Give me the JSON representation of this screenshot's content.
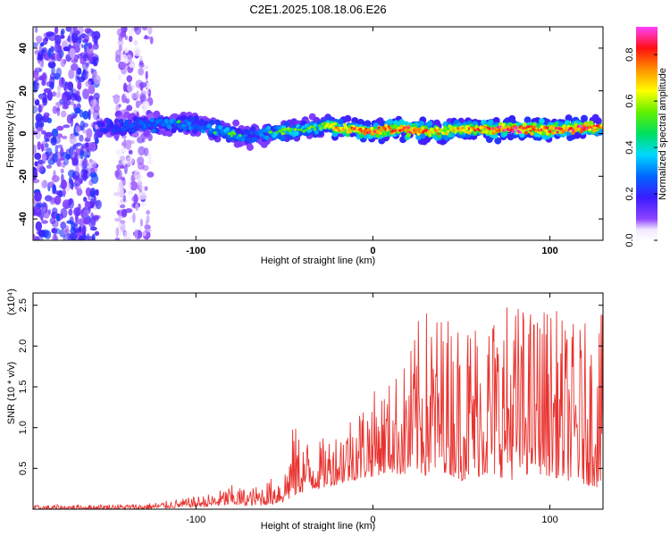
{
  "title": "C2E1.2025.108.18.06.E26",
  "chart_data": [
    {
      "type": "heatmap",
      "xlabel": "Height of straight line (km)",
      "ylabel": "Frequency (Hz)",
      "xlim": [
        -192,
        130
      ],
      "ylim": [
        -50,
        50
      ],
      "x_ticks": [
        -100,
        0,
        100
      ],
      "x_tick_labels": [
        "-100",
        "0",
        "100"
      ],
      "y_ticks": [
        -40,
        -20,
        0,
        20,
        40
      ],
      "y_tick_labels": [
        "-40",
        "-20",
        "0",
        "20",
        "40"
      ],
      "colorbar": {
        "label": "Normalized spectral amplitude",
        "range": [
          0,
          0.92
        ],
        "ticks": [
          0.0,
          0.2,
          0.4,
          0.6,
          0.8
        ],
        "tick_labels": [
          "0.0",
          "0.2",
          "0.4",
          "0.6",
          "0.8"
        ]
      },
      "ridge": {
        "x": [
          -155,
          -140,
          -125,
          -110,
          -100,
          -90,
          -80,
          -70,
          -60,
          -50,
          -40,
          -30,
          -25,
          -20,
          -10,
          0,
          10,
          20,
          30,
          40,
          50,
          60,
          70,
          80,
          90,
          100,
          110,
          120,
          130
        ],
        "frequency": [
          3,
          4,
          4,
          5,
          4,
          2,
          0,
          -2,
          0,
          1,
          2,
          3,
          4,
          2,
          2,
          1,
          2,
          2,
          1,
          1,
          2,
          2,
          2,
          2,
          2,
          2,
          2,
          3,
          3
        ],
        "amplitude": [
          0.3,
          0.35,
          0.4,
          0.45,
          0.4,
          0.45,
          0.5,
          0.4,
          0.45,
          0.55,
          0.5,
          0.5,
          0.6,
          0.7,
          0.75,
          0.8,
          0.75,
          0.8,
          0.75,
          0.65,
          0.7,
          0.75,
          0.8,
          0.85,
          0.8,
          0.75,
          0.8,
          0.85,
          0.7
        ]
      },
      "noise_regions": [
        {
          "x_range": [
            -192,
            -155
          ],
          "frequency_range": [
            -50,
            50
          ],
          "amplitude": 0.15
        },
        {
          "x_range": [
            -145,
            -125
          ],
          "frequency_range": [
            -50,
            50
          ],
          "amplitude": 0.08
        }
      ]
    },
    {
      "type": "line",
      "xlabel": "Height of straight line (km)",
      "ylabel": "SNR (10 * v/v)",
      "y_multiplier": "(x10⁴)",
      "xlim": [
        -192,
        130
      ],
      "ylim": [
        0,
        2.65
      ],
      "x_ticks": [
        -100,
        0,
        100
      ],
      "x_tick_labels": [
        "-100",
        "0",
        "100"
      ],
      "y_ticks": [
        0.5,
        1.0,
        1.5,
        2.0,
        2.5
      ],
      "y_tick_labels": [
        "0.5",
        "1.0",
        "1.5",
        "2.0",
        "2.5"
      ],
      "color": "#e8322e",
      "envelope": {
        "x": [
          -192,
          -160,
          -130,
          -110,
          -90,
          -80,
          -70,
          -60,
          -50,
          -45,
          -40,
          -30,
          -20,
          -10,
          0,
          10,
          20,
          25,
          30,
          40,
          50,
          60,
          70,
          80,
          90,
          100,
          110,
          120,
          130
        ],
        "max": [
          0.05,
          0.06,
          0.07,
          0.12,
          0.2,
          0.3,
          0.25,
          0.35,
          0.5,
          1.05,
          0.9,
          0.85,
          1.0,
          1.3,
          1.45,
          1.6,
          1.9,
          2.3,
          2.5,
          2.45,
          2.4,
          2.5,
          2.55,
          2.6,
          2.5,
          2.55,
          2.3,
          2.3,
          2.4
        ],
        "min": [
          0.0,
          0.0,
          0.0,
          0.02,
          0.03,
          0.05,
          0.04,
          0.05,
          0.08,
          0.15,
          0.2,
          0.25,
          0.3,
          0.35,
          0.4,
          0.45,
          0.4,
          0.45,
          0.4,
          0.45,
          0.35,
          0.4,
          0.4,
          0.35,
          0.45,
          0.4,
          0.35,
          0.3,
          0.25
        ]
      }
    }
  ]
}
